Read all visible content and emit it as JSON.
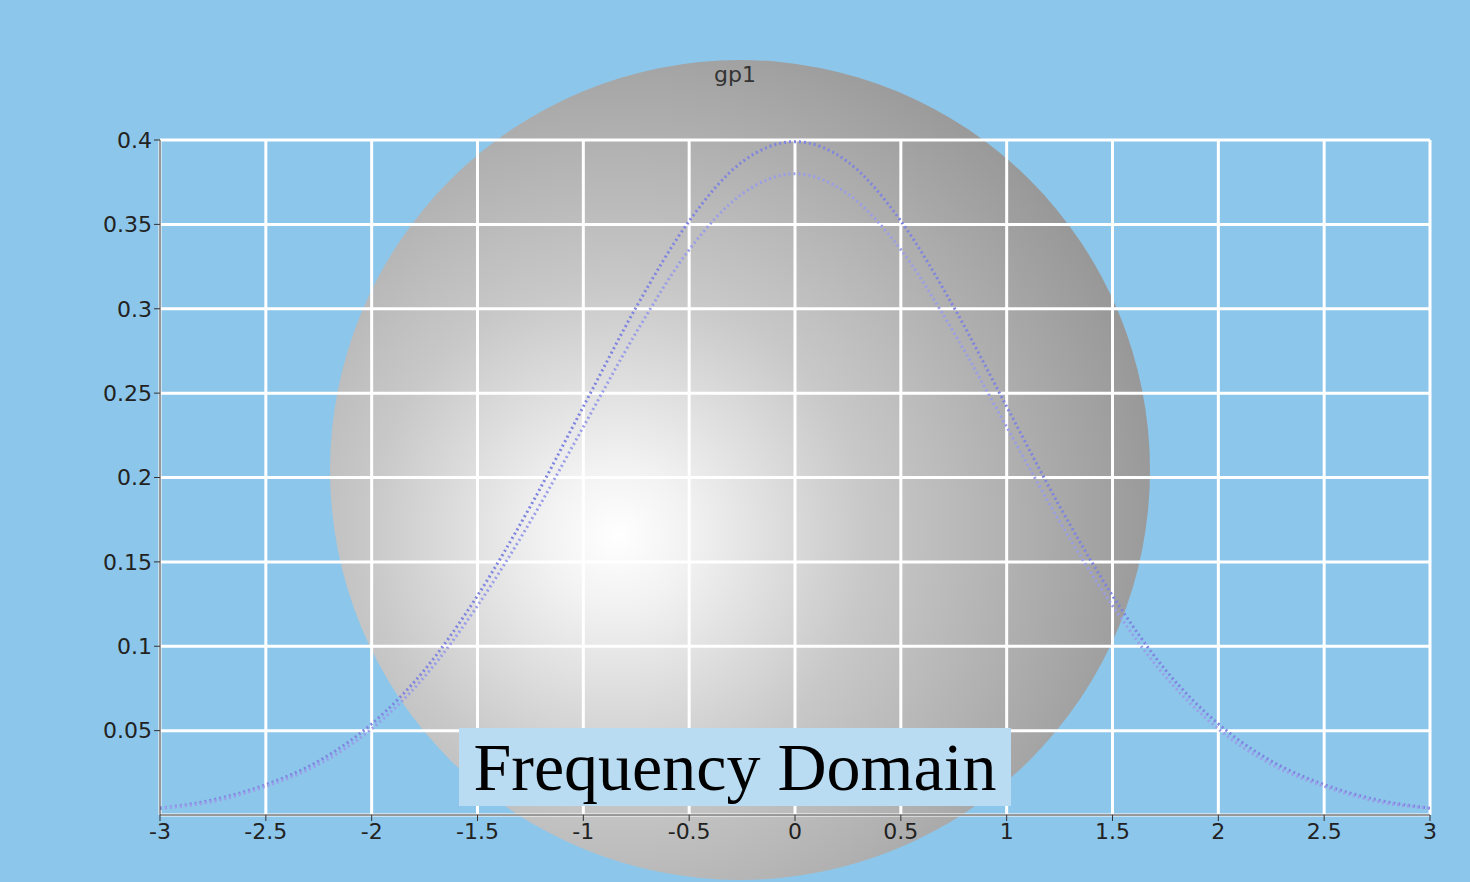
{
  "chart_data": {
    "type": "line",
    "title": "gp1",
    "annotation": "Frequency Domain",
    "x": [
      -3,
      -2.75,
      -2.5,
      -2.25,
      -2,
      -1.75,
      -1.5,
      -1.25,
      -1,
      -0.75,
      -0.5,
      -0.25,
      0,
      0.25,
      0.5,
      0.75,
      1,
      1.25,
      1.5,
      1.75,
      2,
      2.25,
      2.5,
      2.75,
      3
    ],
    "series": [
      {
        "color": "#7f84e0",
        "line_style": "dotted",
        "values": [
          0.004,
          0.009,
          0.018,
          0.032,
          0.054,
          0.086,
          0.13,
          0.183,
          0.242,
          0.301,
          0.352,
          0.387,
          0.399,
          0.387,
          0.352,
          0.301,
          0.242,
          0.183,
          0.13,
          0.086,
          0.054,
          0.032,
          0.018,
          0.009,
          0.004
        ]
      },
      {
        "color": "#9a9ee8",
        "line_style": "dotted",
        "values": [
          0.004,
          0.008,
          0.017,
          0.03,
          0.051,
          0.082,
          0.124,
          0.174,
          0.23,
          0.286,
          0.335,
          0.368,
          0.38,
          0.368,
          0.335,
          0.286,
          0.23,
          0.174,
          0.124,
          0.082,
          0.051,
          0.03,
          0.017,
          0.008,
          0.004
        ]
      }
    ],
    "xlim": [
      -3,
      3
    ],
    "xticks": [
      -3,
      -2.5,
      -2,
      -1.5,
      -1,
      -0.5,
      0,
      0.5,
      1,
      1.5,
      2,
      2.5,
      3
    ],
    "ylim": [
      0,
      0.4
    ],
    "yticks": [
      0.05,
      0.1,
      0.15,
      0.2,
      0.25,
      0.3,
      0.35,
      0.4
    ],
    "grid": true
  }
}
